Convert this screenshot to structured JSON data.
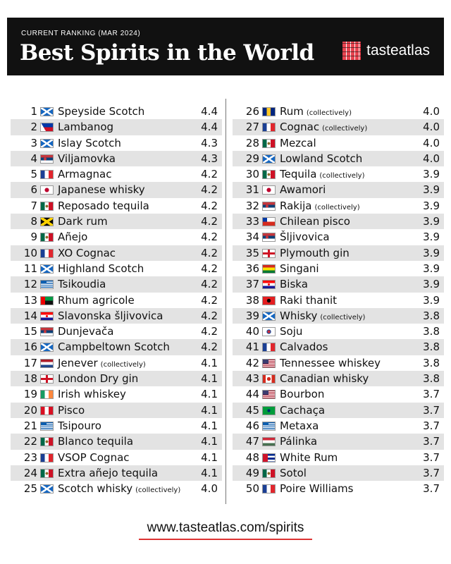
{
  "header": {
    "subtitle": "CURRENT RANKING (MAR 2024)",
    "title": "Best Spirits in the World",
    "logo": "tasteatlas"
  },
  "table": {
    "rows": [
      {
        "rank": 1,
        "name": "Speyside Scotch",
        "score": "4.4"
      },
      {
        "rank": 2,
        "name": "Lambanog",
        "score": "4.4"
      },
      {
        "rank": 3,
        "name": "Islay Scotch",
        "score": "4.3"
      },
      {
        "rank": 4,
        "name": "Viljamovka",
        "score": "4.3"
      },
      {
        "rank": 5,
        "name": "Armagnac",
        "score": "4.2"
      },
      {
        "rank": 6,
        "name": "Japanese whisky",
        "score": "4.2"
      },
      {
        "rank": 7,
        "name": "Reposado tequila",
        "score": "4.2"
      },
      {
        "rank": 8,
        "name": "Dark rum",
        "score": "4.2"
      },
      {
        "rank": 9,
        "name": "Añejo",
        "score": "4.2"
      },
      {
        "rank": 10,
        "name": "XO Cognac",
        "score": "4.2"
      },
      {
        "rank": 11,
        "name": "Highland Scotch",
        "score": "4.2"
      },
      {
        "rank": 12,
        "name": "Tsikoudia",
        "score": "4.2"
      },
      {
        "rank": 13,
        "name": "Rhum agricole",
        "score": "4.2"
      },
      {
        "rank": 14,
        "name": "Slavonska šljivovica",
        "score": "4.2"
      },
      {
        "rank": 15,
        "name": "Dunjevača",
        "score": "4.2"
      },
      {
        "rank": 16,
        "name": "Campbeltown Scotch",
        "score": "4.2"
      },
      {
        "rank": 17,
        "name": "Jenever",
        "note": "(collectively)",
        "score": "4.1"
      },
      {
        "rank": 18,
        "name": "London Dry gin",
        "score": "4.1"
      },
      {
        "rank": 19,
        "name": "Irish whiskey",
        "score": "4.1"
      },
      {
        "rank": 20,
        "name": "Pisco",
        "score": "4.1"
      },
      {
        "rank": 21,
        "name": "Tsipouro",
        "score": "4.1"
      },
      {
        "rank": 22,
        "name": "Blanco tequila",
        "score": "4.1"
      },
      {
        "rank": 23,
        "name": "VSOP Cognac",
        "score": "4.1"
      },
      {
        "rank": 24,
        "name": "Extra añejo tequila",
        "score": "4.1"
      },
      {
        "rank": 25,
        "name": "Scotch whisky",
        "note": "(collectively)",
        "score": "4.0"
      },
      {
        "rank": 26,
        "name": "Rum",
        "note": "(collectively)",
        "score": "4.0"
      },
      {
        "rank": 27,
        "name": "Cognac",
        "note": "(collectively)",
        "score": "4.0"
      },
      {
        "rank": 28,
        "name": "Mezcal",
        "score": "4.0"
      },
      {
        "rank": 29,
        "name": "Lowland Scotch",
        "score": "4.0"
      },
      {
        "rank": 30,
        "name": "Tequila",
        "note": "(collectively)",
        "score": "3.9"
      },
      {
        "rank": 31,
        "name": "Awamori",
        "score": "3.9"
      },
      {
        "rank": 32,
        "name": "Rakija",
        "note": "(collectively)",
        "score": "3.9"
      },
      {
        "rank": 33,
        "name": "Chilean pisco",
        "score": "3.9"
      },
      {
        "rank": 34,
        "name": "Šljivovica",
        "score": "3.9"
      },
      {
        "rank": 35,
        "name": "Plymouth gin",
        "score": "3.9"
      },
      {
        "rank": 36,
        "name": "Singani",
        "score": "3.9"
      },
      {
        "rank": 37,
        "name": "Biska",
        "score": "3.9"
      },
      {
        "rank": 38,
        "name": "Raki thanit",
        "score": "3.9"
      },
      {
        "rank": 39,
        "name": "Whisky",
        "note": "(collectively)",
        "score": "3.8"
      },
      {
        "rank": 40,
        "name": "Soju",
        "score": "3.8"
      },
      {
        "rank": 41,
        "name": "Calvados",
        "score": "3.8"
      },
      {
        "rank": 42,
        "name": "Tennessee whiskey",
        "score": "3.8"
      },
      {
        "rank": 43,
        "name": "Canadian whisky",
        "score": "3.8"
      },
      {
        "rank": 44,
        "name": "Bourbon",
        "score": "3.7"
      },
      {
        "rank": 45,
        "name": "Cachaça",
        "score": "3.7"
      },
      {
        "rank": 46,
        "name": "Metaxa",
        "score": "3.7"
      },
      {
        "rank": 47,
        "name": "Pálinka",
        "score": "3.7"
      },
      {
        "rank": 48,
        "name": "White Rum",
        "score": "3.7"
      },
      {
        "rank": 49,
        "name": "Sotol",
        "score": "3.7"
      },
      {
        "rank": 50,
        "name": "Poire Williams",
        "score": "3.7"
      }
    ]
  },
  "footer": {
    "url": "www.tasteatlas.com/spirits"
  }
}
